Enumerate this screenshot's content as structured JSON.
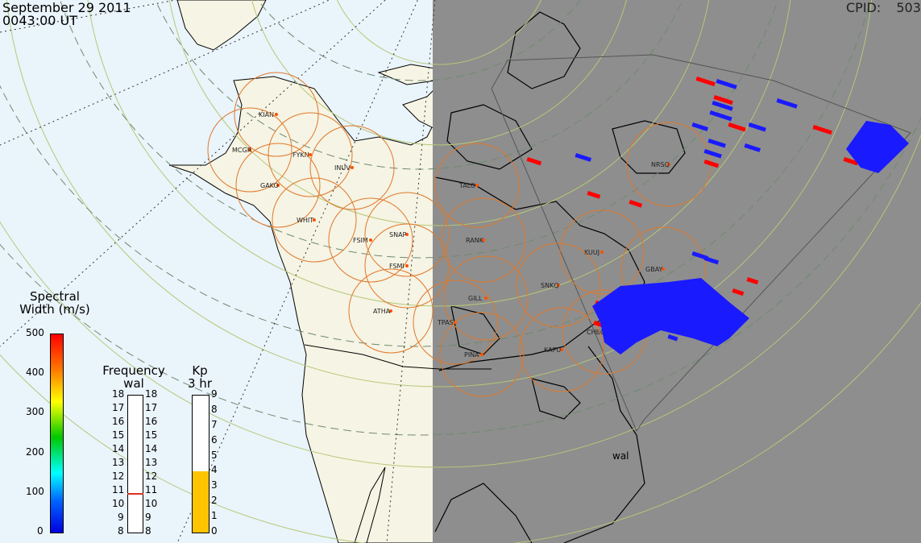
{
  "header": {
    "date": "September 29 2011",
    "time": "0043:00 UT"
  },
  "cpid": {
    "label": "CPID:",
    "value": "503"
  },
  "spectral": {
    "title_line1": "Spectral",
    "title_line2": "Width (m/s)",
    "ticks": [
      "500",
      "400",
      "300",
      "200",
      "100",
      "0"
    ]
  },
  "frequency": {
    "title": "Frequency",
    "radar": "wal",
    "ticks": [
      "18",
      "17",
      "16",
      "15",
      "14",
      "13",
      "12",
      "11",
      "10",
      "9",
      "8"
    ],
    "current": 10.8
  },
  "kp": {
    "title": "Kp",
    "subtitle": "3 hr",
    "ticks": [
      "9",
      "8",
      "7",
      "6",
      "5",
      "4",
      "3",
      "2",
      "1",
      "0"
    ],
    "value": 4
  },
  "radar_site": "wal",
  "stations": [
    {
      "code": "KIAN"
    },
    {
      "code": "MCGR"
    },
    {
      "code": "FYKN"
    },
    {
      "code": "INUV"
    },
    {
      "code": "GAKO"
    },
    {
      "code": "WHIT"
    },
    {
      "code": "FSIM"
    },
    {
      "code": "SNAP"
    },
    {
      "code": "FSMI"
    },
    {
      "code": "ATHA"
    },
    {
      "code": "TALO"
    },
    {
      "code": "RANK"
    },
    {
      "code": "GILL"
    },
    {
      "code": "TPAS"
    },
    {
      "code": "PINA"
    },
    {
      "code": "KUUJ"
    },
    {
      "code": "SNKQ"
    },
    {
      "code": "GBAY"
    },
    {
      "code": "CHBG"
    },
    {
      "code": "KAPU"
    },
    {
      "code": "NRSQ"
    }
  ],
  "colors": {
    "ocean": "#eaf4fb",
    "land": "#f6f4e4",
    "night": "#8e8e8e",
    "magnetometer_circle": "#e0782a",
    "kp_fill": "#ffc400"
  }
}
